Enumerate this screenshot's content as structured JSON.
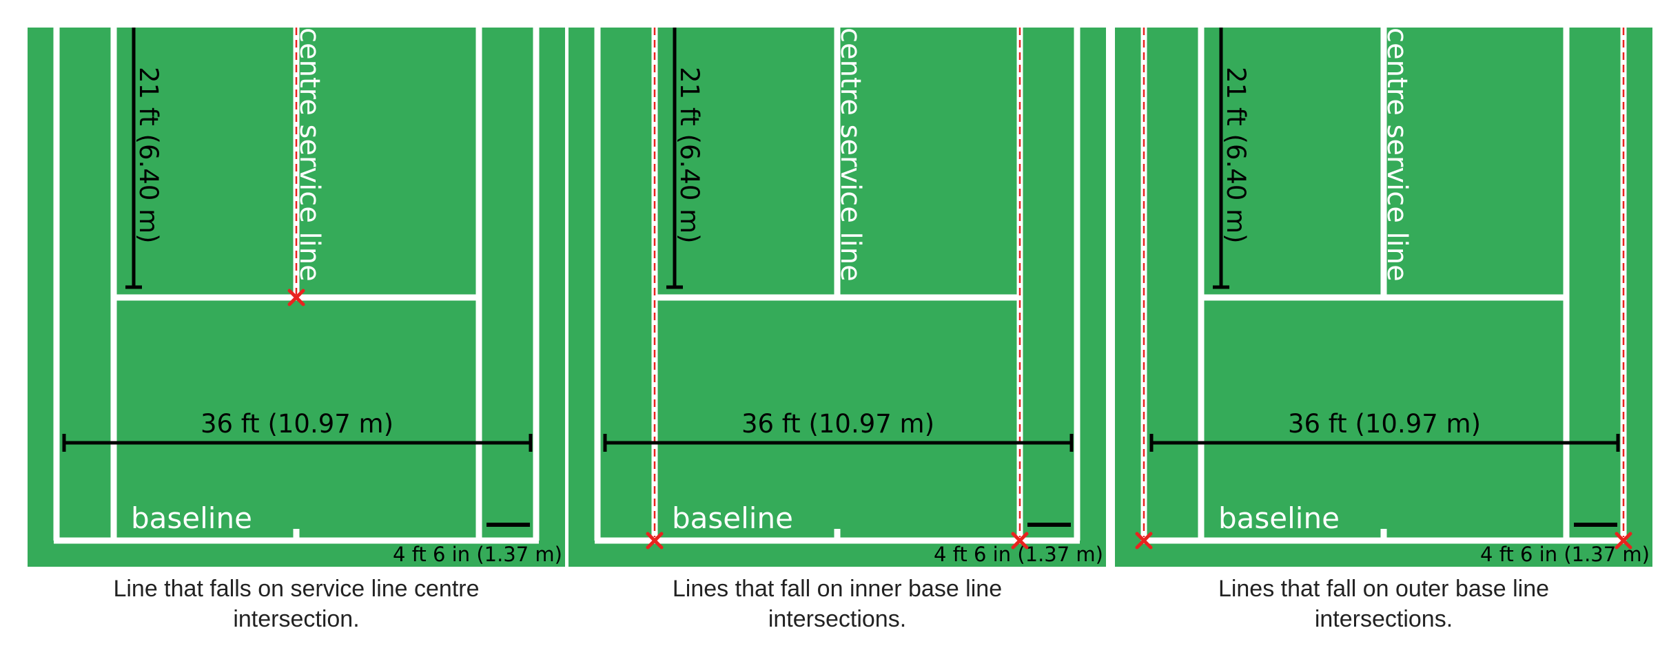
{
  "colors": {
    "court": "#35AB59",
    "line": "#ffffff",
    "measure": "#000000",
    "marker": "#e8231f",
    "caption": "#222222"
  },
  "panels": [
    {
      "measure_vertical": "21 ft (6.40 m)",
      "centre_service_label": "centre service line",
      "measure_width": "36 ft (10.97 m)",
      "baseline_label": "baseline",
      "alley_width": "4 ft 6 in (1.37 m)",
      "caption": "Line that falls on service line centre\nintersection.",
      "highlight": "service-line-centre"
    },
    {
      "measure_vertical": "21 ft (6.40 m)",
      "centre_service_label": "centre service line",
      "measure_width": "36 ft (10.97 m)",
      "baseline_label": "baseline",
      "alley_width": "4 ft 6 in (1.37 m)",
      "caption": "Lines that fall on inner base line\nintersections.",
      "highlight": "inner-baseline"
    },
    {
      "measure_vertical": "21 ft (6.40 m)",
      "centre_service_label": "centre service line",
      "measure_width": "36 ft (10.97 m)",
      "baseline_label": "baseline",
      "alley_width": "4 ft 6 in (1.37 m)",
      "caption": "Lines that fall on outer base line\nintersections.",
      "highlight": "outer-baseline"
    }
  ]
}
